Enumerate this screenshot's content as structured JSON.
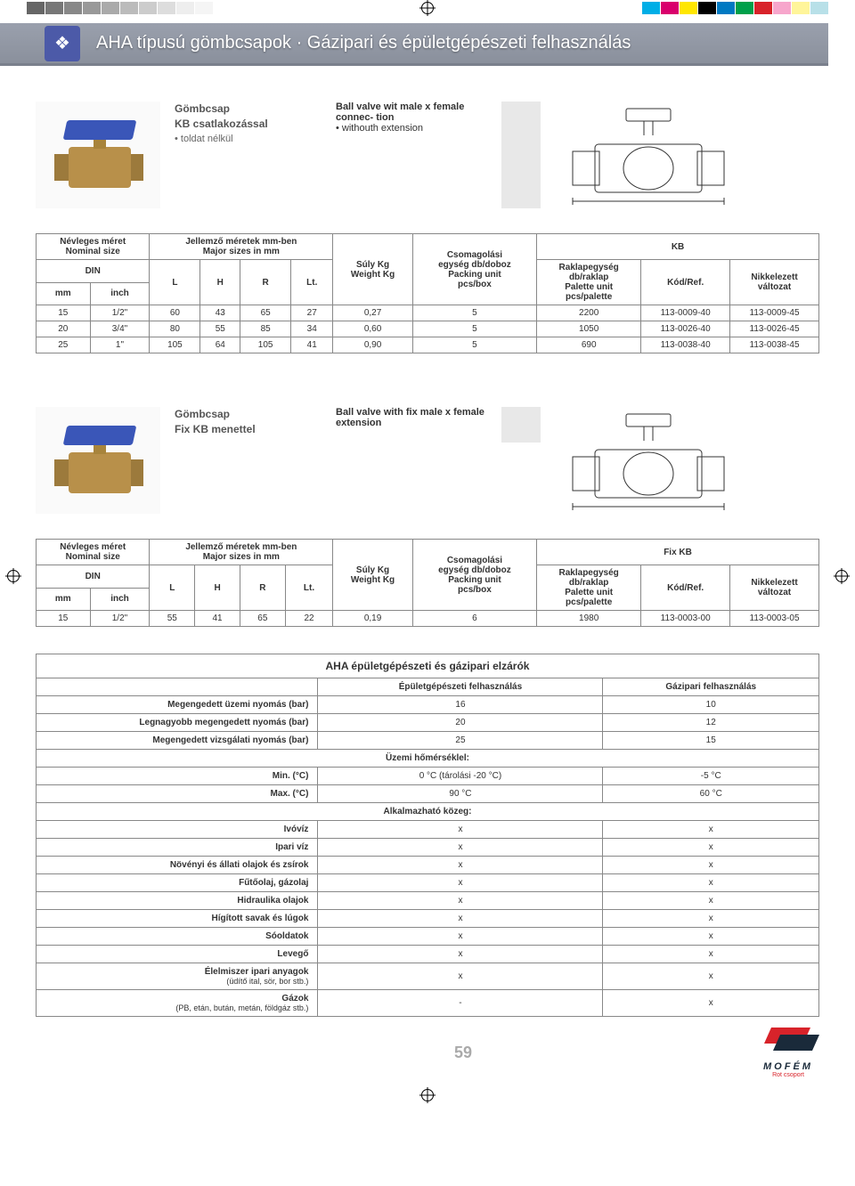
{
  "colorbar_left": [
    "#666666",
    "#777777",
    "#888888",
    "#999999",
    "#aaaaaa",
    "#bbbbbb",
    "#cccccc",
    "#dddddd",
    "#eeeeee",
    "#f5f5f5"
  ],
  "colorbar_right": [
    "#00aee6",
    "#d9006c",
    "#ffe600",
    "#000000",
    "#0079c2",
    "#00a04a",
    "#d8232a",
    "#f7a6cc",
    "#fff59a",
    "#b8e0e8"
  ],
  "header": {
    "title": "AHA típusú gömbcsapok · Gázipari és épületgépészeti felhasználás",
    "diamond": "❖"
  },
  "product1": {
    "title_hu1": "Gömbcsap",
    "title_hu2": "KB csatlakozással",
    "sub_hu": "• toldat nélkül",
    "title_en1": "Ball valve wit",
    "title_en2": "male x female connec-",
    "title_en3": "tion",
    "sub_en": "• withouth extension"
  },
  "product2": {
    "title_hu1": "Gömbcsap",
    "title_hu2": "Fix KB menettel",
    "title_en1": "Ball valve  with fix",
    "title_en2": "male x female extension"
  },
  "tbl_headers": {
    "nominal1": "Névleges méret",
    "nominal2": "Nominal size",
    "major1": "Jellemző méretek mm-ben",
    "major2": "Major sizes in mm",
    "kb": "KB",
    "fixkb": "Fix KB",
    "din": "DIN",
    "mm": "mm",
    "inch": "inch",
    "L": "L",
    "H": "H",
    "R": "R",
    "Lt": "Lt.",
    "weight1": "Súly Kg",
    "weight2": "Weight Kg",
    "pack1": "Csomagolási",
    "pack2": "egység db/doboz",
    "pack3": "Packing unit",
    "pack4": "pcs/box",
    "pal1": "Raklapegység",
    "pal2": "db/raklap",
    "pal3": "Palette unit",
    "pal4": "pcs/palette",
    "kod": "Kód/Ref.",
    "nik1": "Nikkelezett",
    "nik2": "változat"
  },
  "table1_rows": [
    [
      "15",
      "1/2\"",
      "60",
      "43",
      "65",
      "27",
      "0,27",
      "5",
      "2200",
      "113-0009-40",
      "113-0009-45"
    ],
    [
      "20",
      "3/4\"",
      "80",
      "55",
      "85",
      "34",
      "0,60",
      "5",
      "1050",
      "113-0026-40",
      "113-0026-45"
    ],
    [
      "25",
      "1\"",
      "105",
      "64",
      "105",
      "41",
      "0,90",
      "5",
      "690",
      "113-0038-40",
      "113-0038-45"
    ]
  ],
  "table2_rows": [
    [
      "15",
      "1/2\"",
      "55",
      "41",
      "65",
      "22",
      "0,19",
      "6",
      "1980",
      "113-0003-00",
      "113-0003-05"
    ]
  ],
  "app": {
    "title": "AHA épületgépészeti és gázipari elzárók",
    "col1": "Épületgépészeti felhasználás",
    "col2": "Gázipari felhasználás",
    "rows": [
      {
        "label": "Megengedett üzemi nyomás (bar)",
        "v1": "16",
        "v2": "10"
      },
      {
        "label": "Legnagyobb megengedett nyomás (bar)",
        "v1": "20",
        "v2": "12"
      },
      {
        "label": "Megengedett vizsgálati nyomás (bar)",
        "v1": "25",
        "v2": "15"
      }
    ],
    "sec1": "Üzemi hőmérséklel:",
    "temp_rows": [
      {
        "label": "Min. (°C)",
        "v1": "0 °C (tárolási -20 °C)",
        "v2": "-5 °C"
      },
      {
        "label": "Max. (°C)",
        "v1": "90 °C",
        "v2": "60 °C"
      }
    ],
    "sec2": "Alkalmazható közeg:",
    "media_rows": [
      {
        "label": "Ivóvíz",
        "v1": "x",
        "v2": "x"
      },
      {
        "label": "Ipari víz",
        "v1": "x",
        "v2": "x"
      },
      {
        "label": "Növényi és állati olajok és zsírok",
        "v1": "x",
        "v2": "x"
      },
      {
        "label": "Fűtőolaj, gázolaj",
        "v1": "x",
        "v2": "x"
      },
      {
        "label": "Hidraulika olajok",
        "v1": "x",
        "v2": "x"
      },
      {
        "label": "Hígított savak és lúgok",
        "v1": "x",
        "v2": "x"
      },
      {
        "label": "Sóoldatok",
        "v1": "x",
        "v2": "x"
      },
      {
        "label": "Levegő",
        "v1": "x",
        "v2": "x"
      },
      {
        "label": "Élelmiszer ipari anyagok",
        "sub": "(üdítő ital, sör, bor stb.)",
        "v1": "x",
        "v2": "x"
      },
      {
        "label": "Gázok",
        "sub": "(PB, etán, bután, metán, földgáz stb.)",
        "v1": "-",
        "v2": "x"
      }
    ]
  },
  "page_num": "59",
  "logo_text": "MOFÉM",
  "logo_sub": "Rot csoport"
}
